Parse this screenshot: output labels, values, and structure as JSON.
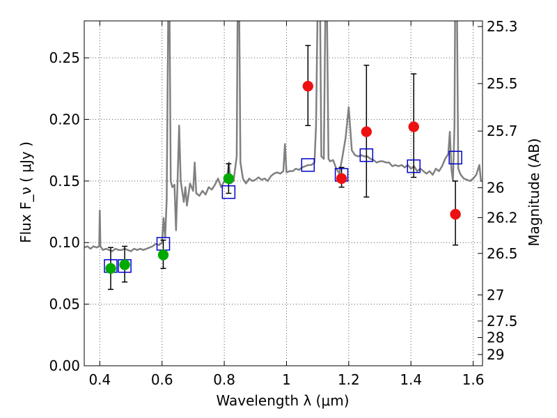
{
  "chart_data": {
    "type": "scatter",
    "xlabel": "Wavelength  λ (μm)",
    "ylabel": "Flux  F_ν  ( μJy )",
    "ylabel_right": "Magnitude (AB)",
    "xlim": [
      0.35,
      1.63
    ],
    "ylim": [
      0.0,
      0.28
    ],
    "x_ticks": [
      0.4,
      0.6,
      0.8,
      1.0,
      1.2,
      1.4,
      1.6
    ],
    "x_tick_labels": [
      "0.4",
      "0.6",
      "0.8",
      "1",
      "1.2",
      "1.4",
      "1.6"
    ],
    "y_ticks": [
      0.0,
      0.05,
      0.1,
      0.15,
      0.2,
      0.25
    ],
    "y_tick_labels": [
      "0.00",
      "0.05",
      "0.10",
      "0.15",
      "0.20",
      "0.25"
    ],
    "magnitude_ticks": [
      "25.3",
      "25.5",
      "25.7",
      "26",
      "26.2",
      "26.5",
      "27",
      "27.5",
      "28",
      "29"
    ],
    "grid": true,
    "model_spectrum": {
      "color": "#808080",
      "points": [
        [
          0.35,
          0.096
        ],
        [
          0.36,
          0.097
        ],
        [
          0.37,
          0.095
        ],
        [
          0.38,
          0.097
        ],
        [
          0.39,
          0.096
        ],
        [
          0.398,
          0.097
        ],
        [
          0.4,
          0.126
        ],
        [
          0.402,
          0.097
        ],
        [
          0.41,
          0.094
        ],
        [
          0.42,
          0.095
        ],
        [
          0.43,
          0.094
        ],
        [
          0.44,
          0.093
        ],
        [
          0.45,
          0.095
        ],
        [
          0.46,
          0.094
        ],
        [
          0.47,
          0.094
        ],
        [
          0.48,
          0.095
        ],
        [
          0.49,
          0.094
        ],
        [
          0.5,
          0.093
        ],
        [
          0.51,
          0.095
        ],
        [
          0.52,
          0.094
        ],
        [
          0.53,
          0.095
        ],
        [
          0.54,
          0.094
        ],
        [
          0.55,
          0.095
        ],
        [
          0.56,
          0.096
        ],
        [
          0.57,
          0.097
        ],
        [
          0.58,
          0.099
        ],
        [
          0.59,
          0.098
        ],
        [
          0.6,
          0.1
        ],
        [
          0.605,
          0.12
        ],
        [
          0.61,
          0.104
        ],
        [
          0.615,
          0.135
        ],
        [
          0.62,
          0.29
        ],
        [
          0.624,
          0.29
        ],
        [
          0.628,
          0.15
        ],
        [
          0.633,
          0.145
        ],
        [
          0.64,
          0.147
        ],
        [
          0.645,
          0.11
        ],
        [
          0.65,
          0.15
        ],
        [
          0.655,
          0.195
        ],
        [
          0.66,
          0.15
        ],
        [
          0.67,
          0.133
        ],
        [
          0.675,
          0.145
        ],
        [
          0.68,
          0.13
        ],
        [
          0.69,
          0.148
        ],
        [
          0.7,
          0.142
        ],
        [
          0.705,
          0.165
        ],
        [
          0.71,
          0.14
        ],
        [
          0.72,
          0.138
        ],
        [
          0.73,
          0.142
        ],
        [
          0.74,
          0.139
        ],
        [
          0.75,
          0.145
        ],
        [
          0.76,
          0.143
        ],
        [
          0.77,
          0.147
        ],
        [
          0.78,
          0.152
        ],
        [
          0.79,
          0.145
        ],
        [
          0.8,
          0.15
        ],
        [
          0.81,
          0.155
        ],
        [
          0.815,
          0.165
        ],
        [
          0.82,
          0.148
        ],
        [
          0.83,
          0.15
        ],
        [
          0.84,
          0.17
        ],
        [
          0.843,
          0.29
        ],
        [
          0.848,
          0.29
        ],
        [
          0.852,
          0.165
        ],
        [
          0.86,
          0.152
        ],
        [
          0.87,
          0.148
        ],
        [
          0.88,
          0.152
        ],
        [
          0.89,
          0.15
        ],
        [
          0.9,
          0.151
        ],
        [
          0.91,
          0.153
        ],
        [
          0.92,
          0.151
        ],
        [
          0.93,
          0.152
        ],
        [
          0.94,
          0.15
        ],
        [
          0.95,
          0.154
        ],
        [
          0.96,
          0.156
        ],
        [
          0.97,
          0.157
        ],
        [
          0.98,
          0.156
        ],
        [
          0.99,
          0.158
        ],
        [
          0.995,
          0.18
        ],
        [
          1.0,
          0.157
        ],
        [
          1.01,
          0.158
        ],
        [
          1.02,
          0.158
        ],
        [
          1.03,
          0.16
        ],
        [
          1.04,
          0.159
        ],
        [
          1.05,
          0.161
        ],
        [
          1.06,
          0.162
        ],
        [
          1.07,
          0.163
        ],
        [
          1.08,
          0.163
        ],
        [
          1.09,
          0.165
        ],
        [
          1.095,
          0.195
        ],
        [
          1.1,
          0.29
        ],
        [
          1.108,
          0.29
        ],
        [
          1.112,
          0.17
        ],
        [
          1.12,
          0.168
        ],
        [
          1.125,
          0.29
        ],
        [
          1.13,
          0.29
        ],
        [
          1.135,
          0.168
        ],
        [
          1.14,
          0.166
        ],
        [
          1.15,
          0.167
        ],
        [
          1.16,
          0.16
        ],
        [
          1.17,
          0.156
        ],
        [
          1.18,
          0.17
        ],
        [
          1.19,
          0.185
        ],
        [
          1.2,
          0.21
        ],
        [
          1.21,
          0.175
        ],
        [
          1.22,
          0.171
        ],
        [
          1.23,
          0.17
        ],
        [
          1.24,
          0.171
        ],
        [
          1.25,
          0.17
        ],
        [
          1.26,
          0.17
        ],
        [
          1.27,
          0.168
        ],
        [
          1.28,
          0.167
        ],
        [
          1.29,
          0.165
        ],
        [
          1.3,
          0.166
        ],
        [
          1.31,
          0.166
        ],
        [
          1.32,
          0.165
        ],
        [
          1.33,
          0.165
        ],
        [
          1.34,
          0.162
        ],
        [
          1.35,
          0.163
        ],
        [
          1.36,
          0.162
        ],
        [
          1.37,
          0.163
        ],
        [
          1.38,
          0.161
        ],
        [
          1.39,
          0.163
        ],
        [
          1.4,
          0.16
        ],
        [
          1.41,
          0.162
        ],
        [
          1.42,
          0.158
        ],
        [
          1.43,
          0.16
        ],
        [
          1.44,
          0.158
        ],
        [
          1.45,
          0.156
        ],
        [
          1.46,
          0.158
        ],
        [
          1.47,
          0.155
        ],
        [
          1.48,
          0.16
        ],
        [
          1.49,
          0.158
        ],
        [
          1.5,
          0.162
        ],
        [
          1.51,
          0.168
        ],
        [
          1.52,
          0.172
        ],
        [
          1.525,
          0.19
        ],
        [
          1.53,
          0.16
        ],
        [
          1.535,
          0.15
        ],
        [
          1.54,
          0.195
        ],
        [
          1.542,
          0.29
        ],
        [
          1.548,
          0.29
        ],
        [
          1.552,
          0.16
        ],
        [
          1.56,
          0.155
        ],
        [
          1.57,
          0.152
        ],
        [
          1.58,
          0.151
        ],
        [
          1.59,
          0.15
        ],
        [
          1.6,
          0.152
        ],
        [
          1.61,
          0.155
        ],
        [
          1.62,
          0.163
        ],
        [
          1.625,
          0.15
        ],
        [
          1.63,
          0.15
        ]
      ]
    },
    "model_photometry": {
      "marker": "open-square",
      "color": "#0000cc",
      "x": [
        0.435,
        0.48,
        0.604,
        0.814,
        1.069,
        1.177,
        1.257,
        1.409,
        1.543
      ],
      "y": [
        0.081,
        0.081,
        0.099,
        0.141,
        0.163,
        0.155,
        0.171,
        0.162,
        0.169
      ]
    },
    "observed_optical": {
      "marker": "filled-circle",
      "color": "#00aa00",
      "x": [
        0.435,
        0.48,
        0.604,
        0.814
      ],
      "y": [
        0.079,
        0.082,
        0.09,
        0.152
      ],
      "err_low": [
        0.062,
        0.068,
        0.079,
        0.14
      ],
      "err_high": [
        0.096,
        0.097,
        0.102,
        0.164
      ]
    },
    "observed_nir": {
      "marker": "filled-circle",
      "color": "#ee1111",
      "x": [
        1.069,
        1.177,
        1.257,
        1.409,
        1.543
      ],
      "y": [
        0.227,
        0.152,
        0.19,
        0.194,
        0.123
      ],
      "err_low": [
        0.195,
        0.145,
        0.137,
        0.153,
        0.098
      ],
      "err_high": [
        0.26,
        0.161,
        0.244,
        0.237,
        0.15
      ]
    }
  }
}
